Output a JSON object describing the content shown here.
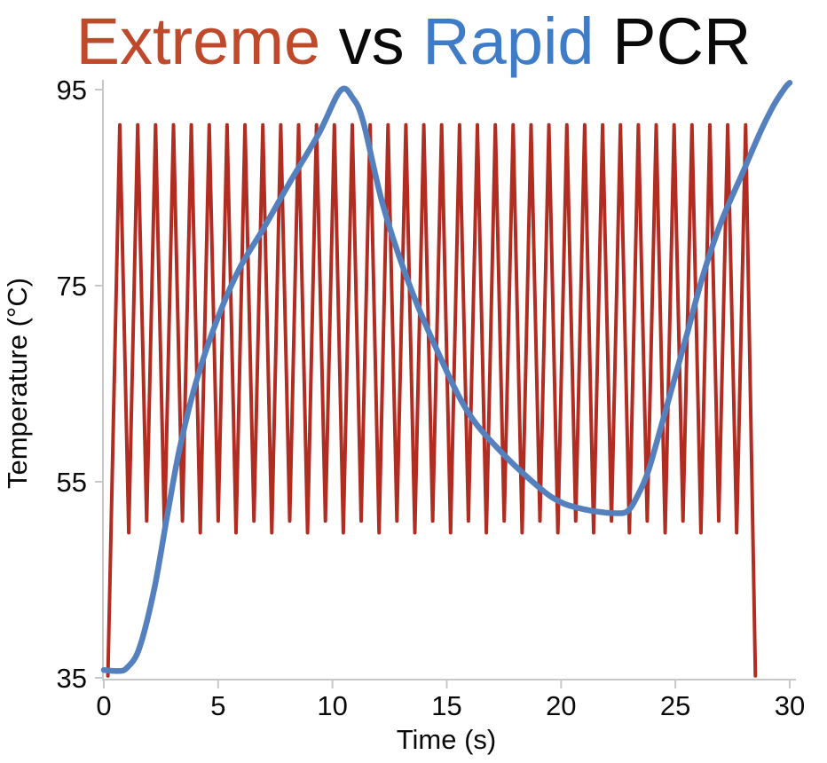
{
  "title": {
    "full_text": "Extreme vs Rapid PCR",
    "parts": [
      {
        "text": "Extreme",
        "color": "#BE4A2B"
      },
      {
        "text": " vs ",
        "color": "#0A0A0A"
      },
      {
        "text": "Rapid",
        "color": "#3E7CC7"
      },
      {
        "text": " PCR",
        "color": "#0A0A0A"
      }
    ]
  },
  "chart_data": {
    "type": "line",
    "title": "Extreme vs Rapid PCR",
    "xlabel": "Time (s)",
    "ylabel": "Temperature (°C)",
    "xlim": [
      0,
      30
    ],
    "ylim": [
      35,
      95
    ],
    "x_ticks": [
      0,
      5,
      10,
      15,
      20,
      25,
      30
    ],
    "y_ticks": [
      35,
      55,
      75,
      95
    ],
    "grid": false,
    "legend_position": "none (series identified by colored words in the title)",
    "axis_color": "#C8C8C8",
    "tick_label_color": "#0A0A0A",
    "series": [
      {
        "name": "Extreme PCR",
        "color": "#B12D22",
        "stroke_width": 4,
        "description": "Very fast thermal cycling: ~36 spikes of ~0.78 s period oscillating between ~50 °C (annealing) and ~91.4 °C (denaturation); ramps up from 35 °C at t≈0.2 s and drops back to 35 °C at t≈28.5 s.",
        "waveform": {
          "start": [
            0.18,
            35.2
          ],
          "first_peak_t": 0.7,
          "period": 0.782,
          "num_peaks": 36,
          "peak_temp": 91.4,
          "trough_temp_deep": 49.8,
          "trough_temp_shallow": 51.0,
          "end": [
            28.5,
            35.2
          ]
        }
      },
      {
        "name": "Rapid PCR",
        "color": "#5580BE",
        "stroke_width": 6.5,
        "description": "One slow cycle in the same 30 s window: holds ~36 °C, ramps to 95 °C peak at t≈10.3 s, cools to ~51.8 °C minimum near t≈22 s, then reheats to ~95.7 °C at t=30 s.",
        "points": [
          [
            0,
            35.8
          ],
          [
            0.6,
            35.7
          ],
          [
            1.0,
            36.0
          ],
          [
            1.55,
            38.0
          ],
          [
            2.2,
            44.0
          ],
          [
            2.8,
            51.9
          ],
          [
            3.3,
            58.2
          ],
          [
            4.0,
            64.9
          ],
          [
            4.9,
            71.2
          ],
          [
            5.9,
            76.6
          ],
          [
            7.0,
            80.9
          ],
          [
            8.1,
            85.4
          ],
          [
            9.4,
            90.5
          ],
          [
            10.35,
            94.9
          ],
          [
            10.9,
            94.1
          ],
          [
            11.35,
            91.7
          ],
          [
            12.2,
            83.3
          ],
          [
            13.3,
            75.5
          ],
          [
            14.5,
            68.8
          ],
          [
            15.9,
            62.2
          ],
          [
            17.4,
            58.0
          ],
          [
            19.1,
            54.3
          ],
          [
            20.0,
            52.9
          ],
          [
            20.8,
            52.3
          ],
          [
            21.6,
            51.95
          ],
          [
            22.3,
            51.8
          ],
          [
            22.9,
            52.0
          ],
          [
            23.35,
            53.6
          ],
          [
            23.8,
            56.0
          ],
          [
            24.3,
            60.0
          ],
          [
            24.9,
            65.0
          ],
          [
            25.5,
            70.0
          ],
          [
            26.2,
            76.0
          ],
          [
            27.0,
            81.5
          ],
          [
            27.9,
            86.3
          ],
          [
            28.7,
            90.6
          ],
          [
            29.3,
            93.4
          ],
          [
            29.8,
            95.2
          ],
          [
            30.0,
            95.7
          ]
        ]
      }
    ]
  }
}
